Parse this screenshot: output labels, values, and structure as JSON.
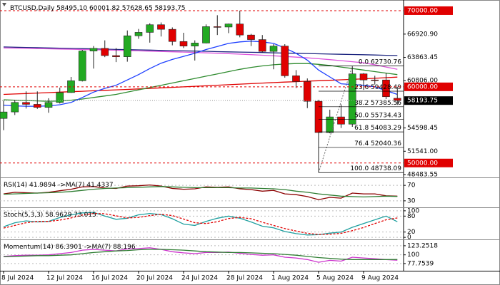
{
  "chart_data": [
    {
      "type": "candlestick",
      "title": "BTCUSD,Daily",
      "ohlc_label": "58495.10 60001.82 57628.65 58193.75",
      "categories": [
        "8 Jul 2024",
        null,
        null,
        null,
        "12 Jul 2024",
        null,
        null,
        null,
        "16 Jul 2024",
        null,
        null,
        null,
        "20 Jul 2024",
        null,
        null,
        null,
        "24 Jul 2024",
        null,
        null,
        null,
        "28 Jul 2024",
        null,
        null,
        null,
        "1 Aug 2024",
        null,
        null,
        null,
        "5 Aug 2024",
        null,
        null,
        null,
        "9 Aug 2024",
        null,
        null,
        null
      ],
      "open": [
        55850,
        56700,
        57950,
        57700,
        57300,
        57950,
        59250,
        60800,
        64700,
        65050,
        64100,
        63950,
        66700,
        67150,
        68150,
        67550,
        65950,
        65350,
        65750,
        67900,
        67850,
        68250,
        66800,
        66200,
        64650,
        65350,
        61450,
        60700,
        58100,
        54000,
        56050,
        55100,
        61700,
        60900,
        60900,
        58495.1
      ],
      "high": [
        58200,
        58300,
        59400,
        59400,
        58500,
        59900,
        61300,
        64850,
        65350,
        66100,
        65100,
        67400,
        67600,
        68350,
        68450,
        67800,
        67100,
        66100,
        68200,
        69400,
        68300,
        70000,
        66950,
        66800,
        65600,
        65600,
        62200,
        61100,
        58300,
        57000,
        57700,
        62730,
        61800,
        61450,
        61800,
        60001.82
      ],
      "low": [
        54300,
        56300,
        57150,
        57100,
        56600,
        57800,
        59200,
        60700,
        62400,
        63900,
        63250,
        63300,
        66300,
        65800,
        66600,
        65450,
        65100,
        63450,
        65700,
        66800,
        67050,
        66500,
        65350,
        64500,
        62300,
        61200,
        59850,
        57200,
        48740,
        53900,
        54600,
        54750,
        59600,
        60300,
        58400,
        57628.65
      ],
      "close": [
        56700,
        57950,
        57700,
        57300,
        57950,
        59250,
        60800,
        64700,
        65050,
        64100,
        63950,
        66700,
        67150,
        68150,
        67550,
        65950,
        65350,
        65750,
        67900,
        67850,
        68250,
        66800,
        66200,
        64650,
        65350,
        61450,
        60700,
        58100,
        54000,
        56050,
        55100,
        61700,
        60900,
        60850,
        58700,
        58193.75
      ],
      "up_color": "#22aa22",
      "down_color": "#e00000",
      "series": [
        {
          "color": "#1a237e",
          "values": [
            65230,
            65200,
            65170,
            65140,
            65100,
            65070,
            65040,
            65010,
            64980,
            64940,
            64910,
            64880,
            64850,
            64820,
            64780,
            64750,
            64720,
            64690,
            64660,
            64620,
            64590,
            64560,
            64530,
            64500,
            64460,
            64430,
            64400,
            64370,
            64340,
            64300,
            64270,
            64240,
            64210,
            64180,
            64140,
            64110
          ]
        },
        {
          "color": "#dd55dd",
          "values": [
            65100,
            65080,
            65050,
            65020,
            64990,
            64960,
            64930,
            64900,
            64870,
            64840,
            64800,
            64760,
            64720,
            64680,
            64640,
            64600,
            64560,
            64510,
            64460,
            64410,
            64350,
            64290,
            64220,
            64150,
            64070,
            63990,
            63900,
            63800,
            63690,
            63570,
            63440,
            63300,
            63150,
            62900,
            62600,
            62300
          ]
        },
        {
          "color": "#e00000",
          "values": [
            59000,
            59060,
            59120,
            59180,
            59240,
            59300,
            59360,
            59420,
            59480,
            59540,
            59600,
            59660,
            59720,
            59790,
            59860,
            59930,
            60000,
            60070,
            60140,
            60210,
            60280,
            60350,
            60420,
            60490,
            60560,
            60620,
            60680,
            60740,
            60800,
            60860,
            60920,
            60980,
            61050,
            61120,
            61200,
            61280
          ]
        },
        {
          "color": "#2e8b2e",
          "values": [
            58300,
            58250,
            58200,
            58150,
            58100,
            58150,
            58250,
            58400,
            58600,
            58800,
            59000,
            59300,
            59600,
            59900,
            60200,
            60500,
            60800,
            61100,
            61400,
            61700,
            62000,
            62300,
            62550,
            62750,
            62900,
            63000,
            63050,
            63050,
            62950,
            62800,
            62600,
            62400,
            62200,
            62000,
            61800,
            61600
          ]
        },
        {
          "color": "#1e40ff",
          "values": [
            57600,
            57500,
            57450,
            57450,
            57500,
            57650,
            57950,
            58600,
            59300,
            59800,
            60200,
            60900,
            61600,
            62400,
            63100,
            63600,
            64000,
            64400,
            64900,
            65300,
            65700,
            65900,
            66000,
            65900,
            65700,
            65100,
            64400,
            63500,
            62200,
            61300,
            60400,
            60300,
            60200,
            60000,
            59500,
            59000
          ]
        }
      ],
      "ylim": [
        48200,
        70650
      ],
      "yticks": [
        {
          "value": 66920.9,
          "label": "66920.90"
        },
        {
          "value": 63863.45,
          "label": "63863.45"
        },
        {
          "value": 60806,
          "label": "60806.00"
        },
        {
          "value": 54598.45,
          "label": "54598.45"
        },
        {
          "value": 51541,
          "label": "51541.00"
        },
        {
          "value": 48483.55,
          "label": "48483.55"
        }
      ],
      "levels": [
        {
          "value": 70000,
          "label": "70000.00"
        },
        {
          "value": 60000,
          "label": "60000.00"
        },
        {
          "value": 50000,
          "label": "50000.00"
        }
      ],
      "level_color": "#e00000",
      "current_price": 58193.75,
      "fib_levels": [
        {
          "ratio": "0.0",
          "price": {
            "value": 62730.76,
            "label": "62730.76"
          }
        },
        {
          "ratio": "23.6",
          "price": {
            "value": 59428.49,
            "label": "59428.49"
          }
        },
        {
          "ratio": "38.2",
          "price": {
            "value": 57385.56,
            "label": "57385.56"
          }
        },
        {
          "ratio": "50.0",
          "price": {
            "value": 55734.43,
            "label": "55734.43"
          }
        },
        {
          "ratio": "61.8",
          "price": {
            "value": 54083.29,
            "label": "54083.29"
          }
        },
        {
          "ratio": "76.4",
          "price": {
            "value": 52040.36,
            "label": "52040.36"
          }
        },
        {
          "ratio": "100.0",
          "price": {
            "value": 48738.09,
            "label": "48738.09"
          }
        }
      ]
    },
    {
      "type": "line",
      "series": [
        {
          "name": "RSI(14)",
          "color": "#8b0000",
          "values": [
            48,
            52,
            51,
            50,
            52,
            56,
            60,
            66,
            67,
            63,
            62,
            68,
            69,
            71,
            68,
            62,
            60,
            61,
            66,
            65,
            66,
            61,
            59,
            55,
            57,
            48,
            46,
            41,
            33,
            39,
            37,
            50,
            48,
            48,
            43,
            41.9894
          ]
        },
        {
          "name": "->MA(7)",
          "color": "#2e7d32",
          "values": [
            47,
            48,
            49,
            50,
            51,
            52,
            54,
            57,
            60,
            62,
            63,
            64,
            65,
            66,
            67,
            66,
            65,
            64,
            64,
            64,
            64,
            63,
            63,
            62,
            61,
            59,
            55,
            52,
            48,
            45,
            42,
            41,
            40,
            41,
            42,
            41.4337
          ]
        }
      ],
      "ylim": [
        15,
        85
      ],
      "yticks": [
        70,
        30
      ]
    },
    {
      "type": "line",
      "series": [
        {
          "name": "Stoch(5,3,3)",
          "color": "#20a0a0",
          "values": [
            40,
            55,
            62,
            58,
            60,
            75,
            85,
            92,
            94,
            80,
            68,
            72,
            85,
            90,
            86,
            70,
            50,
            45,
            60,
            72,
            80,
            72,
            58,
            42,
            36,
            22,
            14,
            9,
            10,
            16,
            20,
            38,
            52,
            66,
            80,
            58.9629
          ]
        },
        {
          "color": "#e00000",
          "dashed": true,
          "values": [
            35,
            45,
            55,
            60,
            60,
            65,
            73,
            84,
            90,
            89,
            81,
            73,
            75,
            82,
            87,
            82,
            69,
            55,
            52,
            59,
            71,
            75,
            70,
            57,
            45,
            33,
            24,
            15,
            11,
            12,
            15,
            25,
            37,
            52,
            66,
            73.015
          ]
        }
      ],
      "ylim": [
        -5,
        105
      ],
      "yticks": [
        100,
        80,
        20,
        0
      ]
    },
    {
      "type": "line",
      "series": [
        {
          "name": "Momentum(14)",
          "color": "#cc33cc",
          "values": [
            96,
            98,
            99,
            99,
            100,
            103,
            106,
            112,
            114,
            112,
            110,
            115,
            116,
            118,
            114,
            108,
            105,
            103,
            106,
            106,
            107,
            104,
            101,
            99,
            100,
            94,
            92,
            88,
            81,
            86,
            84,
            94,
            92,
            90,
            88,
            86.3901
          ]
        },
        {
          "name": "->MA(7)",
          "color": "#2e7d32",
          "values": [
            95,
            96,
            97,
            98,
            98,
            99,
            100,
            103,
            106,
            108,
            110,
            111,
            113,
            114,
            114,
            113,
            112,
            110,
            108,
            107,
            106,
            106,
            105,
            104,
            103,
            101,
            99,
            96,
            93,
            91,
            89,
            88,
            88,
            88,
            88,
            88.196
          ]
        }
      ],
      "ylim": [
        63,
        134
      ],
      "yticks": [
        123.2518,
        100,
        77.7539
      ]
    }
  ]
}
